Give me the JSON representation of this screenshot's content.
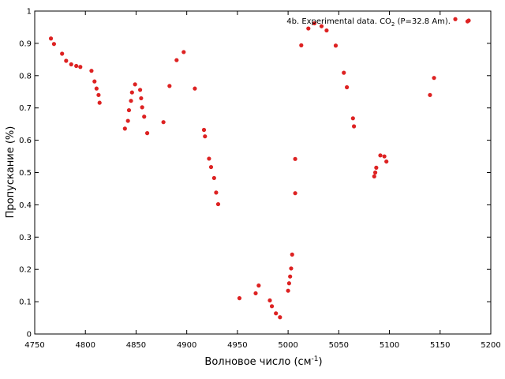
{
  "chart_data": {
    "type": "scatter",
    "title": "",
    "xlabel": "Волновое число (см",
    "xlabel_sup": "-1",
    "xlabel_end": ")",
    "ylabel": "Пропускание (%)",
    "xlim": [
      4750,
      5200
    ],
    "ylim": [
      0,
      1
    ],
    "xticks": [
      4750,
      4800,
      4850,
      4900,
      4950,
      5000,
      5050,
      5100,
      5150,
      5200
    ],
    "yticks": [
      0,
      0.1,
      0.2,
      0.3,
      0.4,
      0.5,
      0.6,
      0.7,
      0.8,
      0.9,
      1
    ],
    "xtick_labels": [
      "4750",
      "4800",
      "4850",
      "4900",
      "4950",
      "5000",
      "5050",
      "5100",
      "5150",
      "5200"
    ],
    "ytick_labels": [
      "0",
      "0.1",
      "0.2",
      "0.3",
      "0.4",
      "0.5",
      "0.6",
      "0.7",
      "0.8",
      "0.9",
      "1"
    ],
    "grid": false,
    "legend_position": "top-right",
    "series": [
      {
        "name": "4b. Experimental data. CO₂ (P=32.8 Am).",
        "name_parts": {
          "pre": "4b. Experimental data. CO",
          "sub": "2",
          "post": " (P=32.8 Am)."
        },
        "color": "#dd2222",
        "points": [
          [
            4766,
            0.915
          ],
          [
            4769,
            0.898
          ],
          [
            4777,
            0.868
          ],
          [
            4781,
            0.846
          ],
          [
            4786,
            0.835
          ],
          [
            4791,
            0.83
          ],
          [
            4795,
            0.827
          ],
          [
            4806,
            0.815
          ],
          [
            4809,
            0.782
          ],
          [
            4811,
            0.76
          ],
          [
            4813,
            0.74
          ],
          [
            4814,
            0.716
          ],
          [
            4839,
            0.636
          ],
          [
            4842,
            0.66
          ],
          [
            4843,
            0.693
          ],
          [
            4845,
            0.722
          ],
          [
            4846,
            0.748
          ],
          [
            4849,
            0.773
          ],
          [
            4854,
            0.756
          ],
          [
            4855,
            0.73
          ],
          [
            4856,
            0.702
          ],
          [
            4858,
            0.673
          ],
          [
            4861,
            0.622
          ],
          [
            4877,
            0.656
          ],
          [
            4883,
            0.768
          ],
          [
            4890,
            0.848
          ],
          [
            4897,
            0.873
          ],
          [
            4908,
            0.76
          ],
          [
            4917,
            0.632
          ],
          [
            4918,
            0.612
          ],
          [
            4922,
            0.543
          ],
          [
            4924,
            0.517
          ],
          [
            4927,
            0.483
          ],
          [
            4929,
            0.438
          ],
          [
            4931,
            0.402
          ],
          [
            4952,
            0.111
          ],
          [
            4968,
            0.126
          ],
          [
            4971,
            0.15
          ],
          [
            4982,
            0.104
          ],
          [
            4984,
            0.086
          ],
          [
            4988,
            0.064
          ],
          [
            4992,
            0.052
          ],
          [
            5000,
            0.134
          ],
          [
            5001,
            0.157
          ],
          [
            5002,
            0.178
          ],
          [
            5003,
            0.203
          ],
          [
            5004,
            0.246
          ],
          [
            5007,
            0.542
          ],
          [
            5007,
            0.436
          ],
          [
            5013,
            0.894
          ],
          [
            5020,
            0.946
          ],
          [
            5026,
            0.962
          ],
          [
            5033,
            0.953
          ],
          [
            5038,
            0.94
          ],
          [
            5047,
            0.893
          ],
          [
            5055,
            0.809
          ],
          [
            5058,
            0.764
          ],
          [
            5064,
            0.668
          ],
          [
            5065,
            0.643
          ],
          [
            5085,
            0.488
          ],
          [
            5086,
            0.5
          ],
          [
            5087,
            0.515
          ],
          [
            5091,
            0.553
          ],
          [
            5095,
            0.55
          ],
          [
            5097,
            0.534
          ],
          [
            5140,
            0.74
          ],
          [
            5144,
            0.793
          ],
          [
            5165,
            0.975
          ],
          [
            5177,
            0.968
          ]
        ]
      }
    ]
  }
}
